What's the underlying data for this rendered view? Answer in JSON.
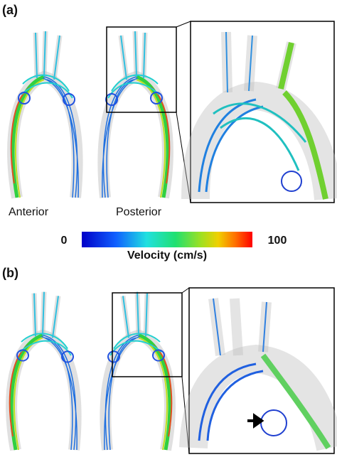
{
  "panels": {
    "a": {
      "label": "(a)",
      "views": [
        "Anterior",
        "Posterior"
      ]
    },
    "b": {
      "label": "(b)"
    }
  },
  "colorbar": {
    "min": "0",
    "max": "100",
    "title": "Velocity (cm/s)"
  }
}
